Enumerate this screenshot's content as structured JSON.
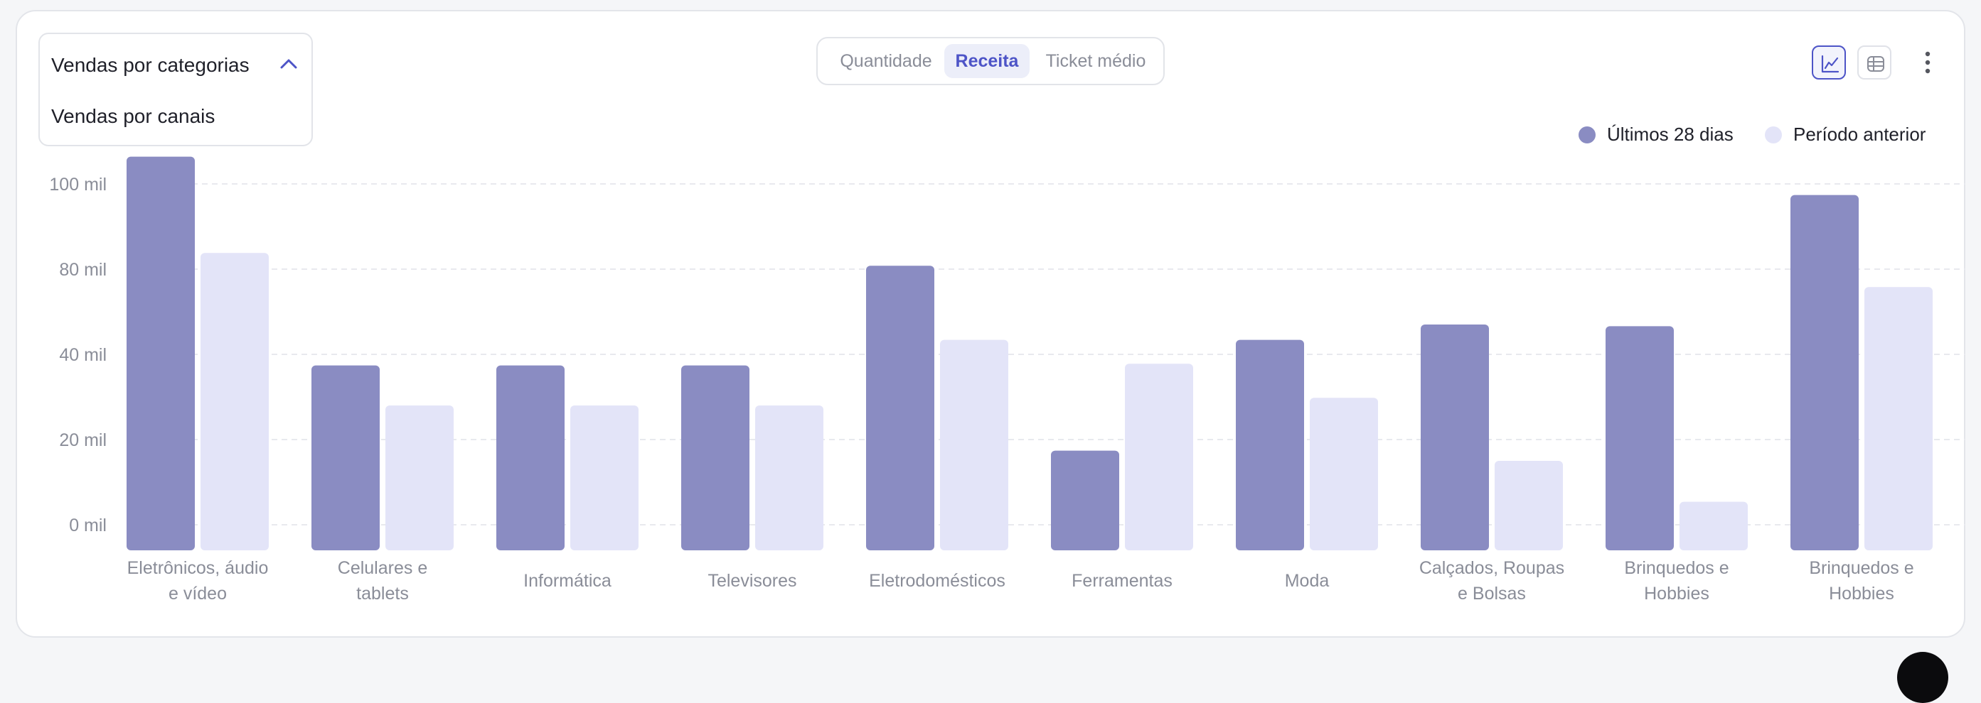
{
  "dropdown": {
    "selected_label": "Vendas por categorias",
    "option_label": "Vendas por canais"
  },
  "tabs": [
    {
      "label": "Quantidade",
      "active": false
    },
    {
      "label": "Receita",
      "active": true
    },
    {
      "label": "Ticket médio",
      "active": false
    }
  ],
  "toolbar": {
    "chart_view_icon": "line-chart-icon",
    "table_view_icon": "table-icon",
    "more_icon": "more-vertical-icon"
  },
  "colors": {
    "current": "#8a8cc2",
    "previous": "#e3e4f8",
    "accent": "#4d54c7",
    "grid": "#e8e9ee",
    "tick": "#8a8d98"
  },
  "chart_data": {
    "type": "bar",
    "categories": [
      [
        "Eletrônicos, áudio",
        "e vídeo"
      ],
      [
        "Celulares e",
        "tablets"
      ],
      [
        "Informática"
      ],
      [
        "Televisores"
      ],
      [
        "Eletrodomésticos"
      ],
      [
        "Ferramentas"
      ],
      [
        "Moda"
      ],
      [
        "Calçados, Roupas",
        "e Bolsas"
      ],
      [
        "Brinquedos e",
        "Hobbies"
      ],
      [
        "Brinquedos e",
        "Hobbies"
      ]
    ],
    "y_ticks": [
      "100 mil",
      "80 mil",
      "40 mil",
      "20 mil",
      "0 mil"
    ],
    "series": [
      {
        "name": "Últimos 28 dias",
        "values": [
          4.62,
          2.17,
          2.17,
          2.17,
          3.34,
          1.17,
          2.47,
          2.65,
          2.63,
          4.17
        ]
      },
      {
        "name": "Período anterior",
        "values": [
          3.49,
          1.7,
          1.7,
          1.7,
          2.47,
          2.19,
          1.79,
          1.05,
          0.57,
          3.09
        ]
      }
    ],
    "legend_position": "top-right",
    "grid": true
  }
}
